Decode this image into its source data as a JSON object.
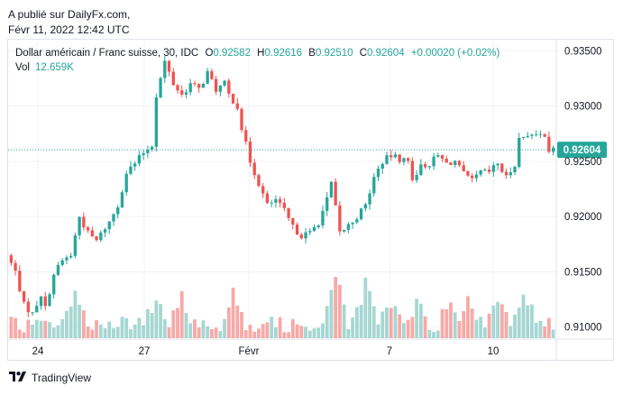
{
  "header": {
    "published_line": "A publié sur DailyFx.com,",
    "date_line": "Févr 11, 2022 12:42 UTC"
  },
  "legend": {
    "symbol": "Dollar américain / Franc suisse, 30, IDC",
    "o_label": "O",
    "o_value": "0.92582",
    "h_label": "H",
    "h_value": "0.92616",
    "b_label": "B",
    "b_value": "0.92510",
    "c_label": "C",
    "c_value": "0.92604",
    "change": "+0.00020 (+0.02%)",
    "vol_label": "Vol",
    "vol_value": "12.659K"
  },
  "brand": {
    "name": "TradingView"
  },
  "colors": {
    "up": "#26a69a",
    "down": "#ef5350",
    "vol_up": "#a6d7d2",
    "vol_down": "#f7a9a7",
    "grid": "#f0f3fa",
    "axis_text": "#131722",
    "price_line": "#26a69a"
  },
  "chart_data": {
    "type": "candlestick",
    "title": "Dollar américain / Franc suisse, 30, IDC",
    "ylim": [
      0.909,
      0.936
    ],
    "y_ticks": [
      "0.93500",
      "0.93000",
      "0.92500",
      "0.92000",
      "0.91500",
      "0.91000"
    ],
    "x_ticks": [
      "24",
      "27",
      "Févr",
      "7",
      "10"
    ],
    "last_price": "0.92604",
    "price_path": [
      [
        0,
        0.9165
      ],
      [
        2,
        0.915
      ],
      [
        4,
        0.912
      ],
      [
        6,
        0.9112
      ],
      [
        8,
        0.913
      ],
      [
        9,
        0.9117
      ],
      [
        11,
        0.9148
      ],
      [
        13,
        0.916
      ],
      [
        15,
        0.9165
      ],
      [
        17,
        0.92
      ],
      [
        19,
        0.9185
      ],
      [
        21,
        0.9178
      ],
      [
        23,
        0.919
      ],
      [
        24,
        0.9195
      ],
      [
        26,
        0.921
      ],
      [
        28,
        0.924
      ],
      [
        30,
        0.9248
      ],
      [
        32,
        0.9258
      ],
      [
        34,
        0.9265
      ],
      [
        35,
        0.931
      ],
      [
        37,
        0.934
      ],
      [
        39,
        0.932
      ],
      [
        41,
        0.931
      ],
      [
        43,
        0.932
      ],
      [
        45,
        0.9315
      ],
      [
        47,
        0.933
      ],
      [
        49,
        0.9315
      ],
      [
        51,
        0.932
      ],
      [
        52,
        0.931
      ],
      [
        54,
        0.93
      ],
      [
        55,
        0.928
      ],
      [
        57,
        0.925
      ],
      [
        59,
        0.923
      ],
      [
        61,
        0.921
      ],
      [
        63,
        0.9215
      ],
      [
        65,
        0.9205
      ],
      [
        67,
        0.919
      ],
      [
        69,
        0.9183
      ],
      [
        71,
        0.9185
      ],
      [
        73,
        0.9195
      ],
      [
        75,
        0.9215
      ],
      [
        76,
        0.923
      ],
      [
        78,
        0.9185
      ],
      [
        80,
        0.9192
      ],
      [
        82,
        0.92
      ],
      [
        84,
        0.921
      ],
      [
        86,
        0.9235
      ],
      [
        88,
        0.925
      ],
      [
        90,
        0.9255
      ],
      [
        92,
        0.9252
      ],
      [
        94,
        0.925
      ],
      [
        95,
        0.9235
      ],
      [
        97,
        0.9245
      ],
      [
        99,
        0.9248
      ],
      [
        101,
        0.9255
      ],
      [
        103,
        0.9248
      ],
      [
        105,
        0.925
      ],
      [
        107,
        0.9238
      ],
      [
        109,
        0.9232
      ],
      [
        111,
        0.924
      ],
      [
        113,
        0.924
      ],
      [
        115,
        0.9248
      ],
      [
        117,
        0.9235
      ],
      [
        119,
        0.9248
      ],
      [
        120,
        0.927
      ],
      [
        122,
        0.9275
      ],
      [
        124,
        0.9272
      ],
      [
        126,
        0.9275
      ],
      [
        127,
        0.926
      ]
    ],
    "volume_spikes": [
      [
        15,
        0.55
      ],
      [
        34,
        0.42
      ],
      [
        40,
        0.38
      ],
      [
        52,
        0.55
      ],
      [
        76,
        0.78
      ],
      [
        83,
        0.58
      ],
      [
        89,
        0.32
      ],
      [
        95,
        0.3
      ],
      [
        103,
        0.44
      ],
      [
        107,
        0.32
      ],
      [
        114,
        0.36
      ],
      [
        120,
        0.55
      ]
    ]
  }
}
